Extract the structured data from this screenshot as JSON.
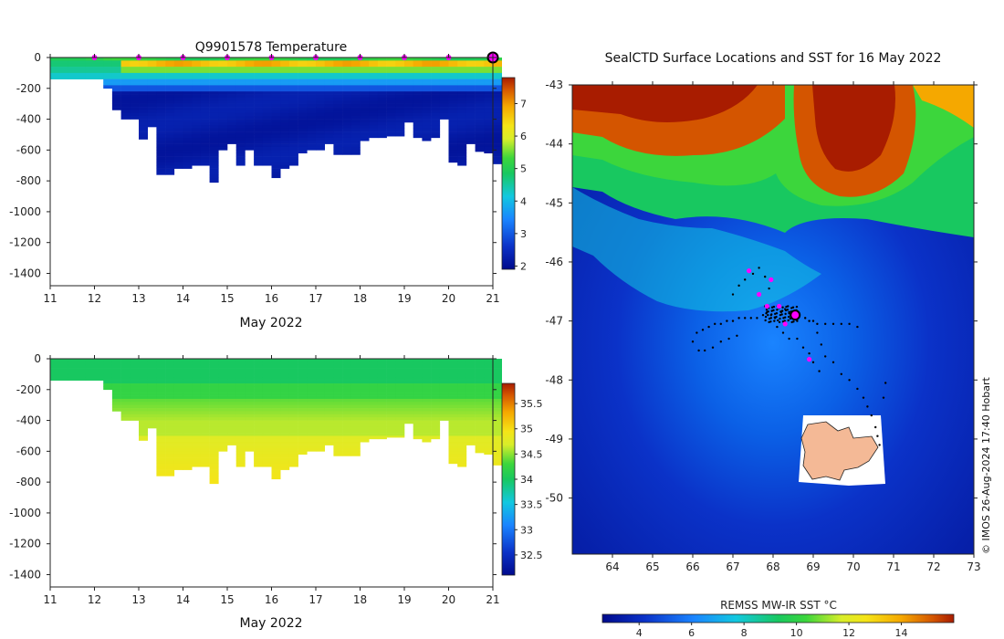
{
  "chart_data": [
    {
      "type": "heatmap",
      "title": "Q9901578  Temperature",
      "xlabel": "May 2022",
      "xlim": [
        11,
        21
      ],
      "ylim": [
        -1480,
        0
      ],
      "xticks": [
        "11",
        "12",
        "13",
        "14",
        "15",
        "16",
        "17",
        "18",
        "19",
        "20",
        "21"
      ],
      "yticks": [
        "0",
        "-200",
        "-400",
        "-600",
        "-800",
        "-1000",
        "-1200",
        "-1400"
      ],
      "colorbar": {
        "min": 1.9,
        "max": 7.8,
        "ticks": [
          "2",
          "3",
          "4",
          "5",
          "6",
          "7"
        ]
      },
      "profile_days": [
        11.0,
        11.4,
        11.8,
        12.2,
        12.4,
        12.6,
        12.8,
        13.0,
        13.2,
        13.4,
        13.6,
        13.8,
        14.0,
        14.2,
        14.4,
        14.6,
        14.8,
        15.0,
        15.2,
        15.4,
        15.6,
        15.8,
        16.0,
        16.2,
        16.4,
        16.6,
        16.8,
        17.0,
        17.2,
        17.4,
        17.6,
        17.8,
        18.0,
        18.2,
        18.4,
        18.6,
        18.8,
        19.0,
        19.2,
        19.4,
        19.6,
        19.8,
        20.0,
        20.2,
        20.4,
        20.6,
        20.8,
        21.0
      ],
      "profile_depths": [
        140,
        140,
        140,
        200,
        340,
        400,
        400,
        530,
        450,
        760,
        760,
        720,
        720,
        700,
        700,
        810,
        600,
        560,
        700,
        600,
        700,
        700,
        780,
        720,
        700,
        620,
        600,
        600,
        560,
        630,
        630,
        630,
        540,
        520,
        520,
        510,
        510,
        420,
        520,
        540,
        520,
        400,
        680,
        700,
        560,
        610,
        620,
        690
      ],
      "surface_markers": [
        12,
        13,
        14,
        15,
        16,
        17,
        18,
        19,
        20
      ],
      "current_marker": 21
    },
    {
      "type": "heatmap",
      "title": "",
      "xlabel": "May 2022",
      "xlim": [
        11,
        21
      ],
      "ylim": [
        -1480,
        0
      ],
      "xticks": [
        "11",
        "12",
        "13",
        "14",
        "15",
        "16",
        "17",
        "18",
        "19",
        "20",
        "21"
      ],
      "yticks": [
        "0",
        "-200",
        "-400",
        "-600",
        "-800",
        "-1000",
        "-1200",
        "-1400"
      ],
      "colorbar": {
        "min": 32.1,
        "max": 35.9,
        "ticks": [
          "32.5",
          "33",
          "33.5",
          "34",
          "34.5",
          "35",
          "35.5"
        ]
      }
    },
    {
      "type": "heatmap",
      "title": "SealCTD Surface Locations and SST for 16 May 2022",
      "xlim": [
        63.0,
        73.0
      ],
      "ylim": [
        -50.95,
        -43.0
      ],
      "xticks": [
        "64",
        "65",
        "66",
        "67",
        "68",
        "69",
        "70",
        "71",
        "72",
        "73"
      ],
      "yticks": [
        "-43",
        "-44",
        "-45",
        "-46",
        "-47",
        "-48",
        "-49",
        "-50"
      ],
      "colorbar": {
        "label": "REMSS MW-IR SST °C",
        "min": 2.6,
        "max": 16.0,
        "ticks": [
          "4",
          "6",
          "8",
          "10",
          "12",
          "14"
        ]
      },
      "credit": "© IMOS 26-Aug-2024 17:40 Hobart",
      "daily_positions": [
        [
          67.4,
          -46.15
        ],
        [
          67.95,
          -46.3
        ],
        [
          67.65,
          -46.55
        ],
        [
          67.85,
          -46.75
        ],
        [
          68.15,
          -46.75
        ],
        [
          68.3,
          -47.05
        ],
        [
          68.55,
          -46.85
        ],
        [
          68.9,
          -47.65
        ]
      ],
      "current_position": [
        68.55,
        -46.9
      ],
      "track_points": [
        [
          66.0,
          -47.35
        ],
        [
          66.1,
          -47.2
        ],
        [
          66.25,
          -47.15
        ],
        [
          66.4,
          -47.1
        ],
        [
          66.55,
          -47.05
        ],
        [
          66.7,
          -47.05
        ],
        [
          66.85,
          -47.0
        ],
        [
          67.0,
          -47.0
        ],
        [
          67.15,
          -46.95
        ],
        [
          67.3,
          -46.95
        ],
        [
          67.45,
          -46.95
        ],
        [
          67.6,
          -46.95
        ],
        [
          67.75,
          -46.9
        ],
        [
          67.85,
          -46.85
        ],
        [
          67.95,
          -46.9
        ],
        [
          68.05,
          -46.95
        ],
        [
          68.2,
          -46.85
        ],
        [
          68.3,
          -46.8
        ],
        [
          68.4,
          -46.85
        ],
        [
          68.5,
          -46.9
        ],
        [
          68.65,
          -46.9
        ],
        [
          68.8,
          -46.95
        ],
        [
          68.9,
          -47.0
        ],
        [
          69.0,
          -47.0
        ],
        [
          69.1,
          -47.05
        ],
        [
          69.3,
          -47.05
        ],
        [
          69.5,
          -47.05
        ],
        [
          69.7,
          -47.05
        ],
        [
          69.9,
          -47.05
        ],
        [
          70.1,
          -47.1
        ],
        [
          69.1,
          -47.2
        ],
        [
          69.2,
          -47.4
        ],
        [
          69.3,
          -47.6
        ],
        [
          69.5,
          -47.7
        ],
        [
          69.7,
          -47.9
        ],
        [
          69.9,
          -48.0
        ],
        [
          70.1,
          -48.15
        ],
        [
          70.25,
          -48.3
        ],
        [
          70.35,
          -48.45
        ],
        [
          70.45,
          -48.6
        ],
        [
          70.55,
          -48.8
        ],
        [
          70.6,
          -48.95
        ],
        [
          70.65,
          -49.1
        ],
        [
          70.75,
          -48.3
        ],
        [
          70.8,
          -48.05
        ],
        [
          67.0,
          -46.55
        ],
        [
          67.15,
          -46.4
        ],
        [
          67.3,
          -46.3
        ],
        [
          67.5,
          -46.2
        ],
        [
          67.65,
          -46.1
        ],
        [
          67.8,
          -46.25
        ],
        [
          67.9,
          -46.45
        ],
        [
          66.3,
          -47.5
        ],
        [
          66.15,
          -47.5
        ],
        [
          66.5,
          -47.45
        ],
        [
          66.7,
          -47.35
        ],
        [
          66.9,
          -47.3
        ],
        [
          67.1,
          -47.25
        ],
        [
          68.1,
          -47.1
        ],
        [
          68.25,
          -47.2
        ],
        [
          68.4,
          -47.3
        ],
        [
          68.6,
          -47.3
        ],
        [
          68.75,
          -47.45
        ],
        [
          68.9,
          -47.55
        ],
        [
          69.0,
          -47.7
        ],
        [
          69.15,
          -47.85
        ]
      ]
    }
  ]
}
